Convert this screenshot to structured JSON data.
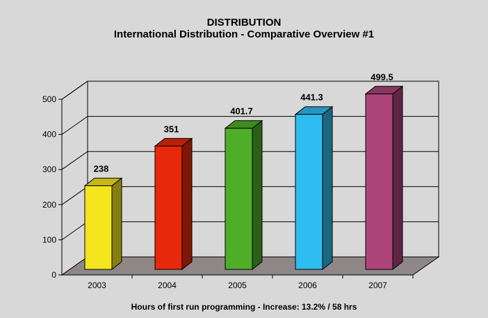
{
  "chart_data": {
    "type": "bar",
    "title": "DISTRIBUTION",
    "subtitle": "International Distribution - Comparative Overview #1",
    "categories": [
      "2003",
      "2004",
      "2005",
      "2006",
      "2007"
    ],
    "values": [
      238,
      351,
      401.7,
      441.3,
      499.5
    ],
    "value_labels": [
      "238",
      "351",
      "401.7",
      "441.3",
      "499.5"
    ],
    "y_ticks": [
      0,
      100,
      200,
      300,
      400,
      500
    ],
    "ylim": [
      0,
      500
    ],
    "grid": true,
    "three_d": true,
    "caption": "Hours of first run programming - Increase: 13.2% / 58 hrs",
    "colors": [
      "#f5e51e",
      "#e8280a",
      "#4fae28",
      "#2fbcf0",
      "#ad457b"
    ],
    "background_color": "#d8d8d8",
    "floor_color": "#8f8787"
  }
}
